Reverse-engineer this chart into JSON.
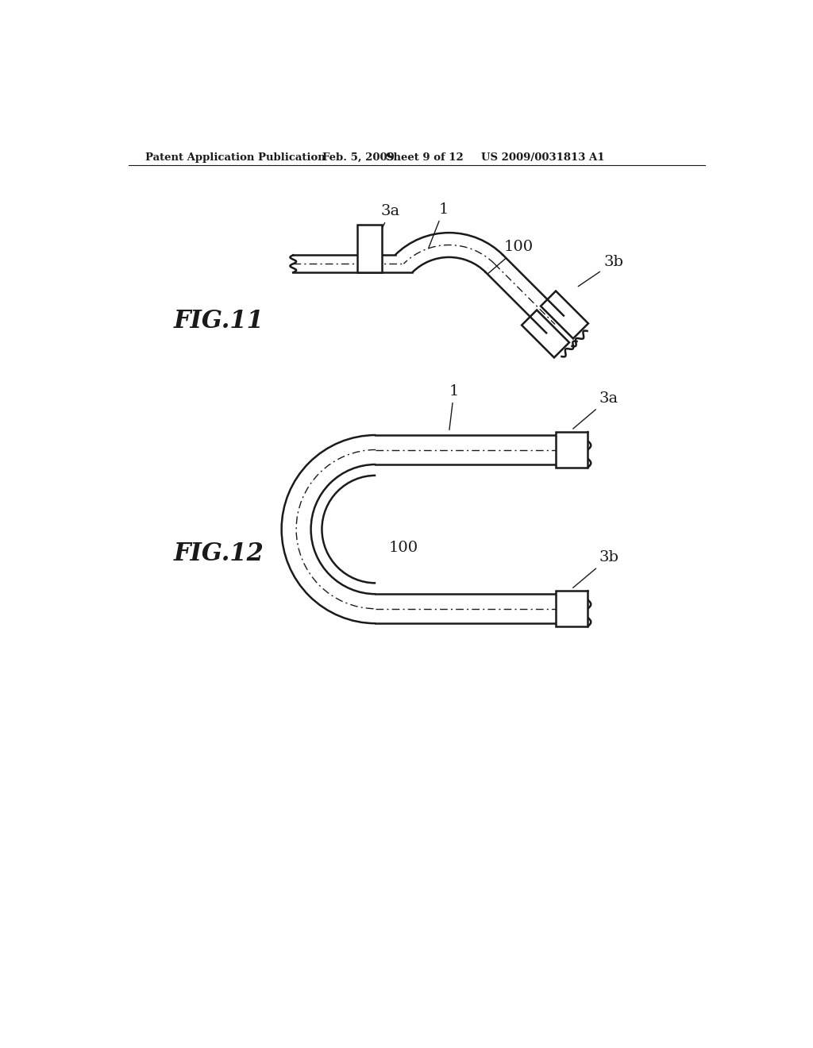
{
  "bg_color": "#ffffff",
  "line_color": "#1a1a1a",
  "header_text": "Patent Application Publication",
  "header_date": "Feb. 5, 2009",
  "header_sheet": "Sheet 9 of 12",
  "header_patent": "US 2009/0031813 A1",
  "fig11_label": "FIG.11",
  "fig12_label": "FIG.12"
}
